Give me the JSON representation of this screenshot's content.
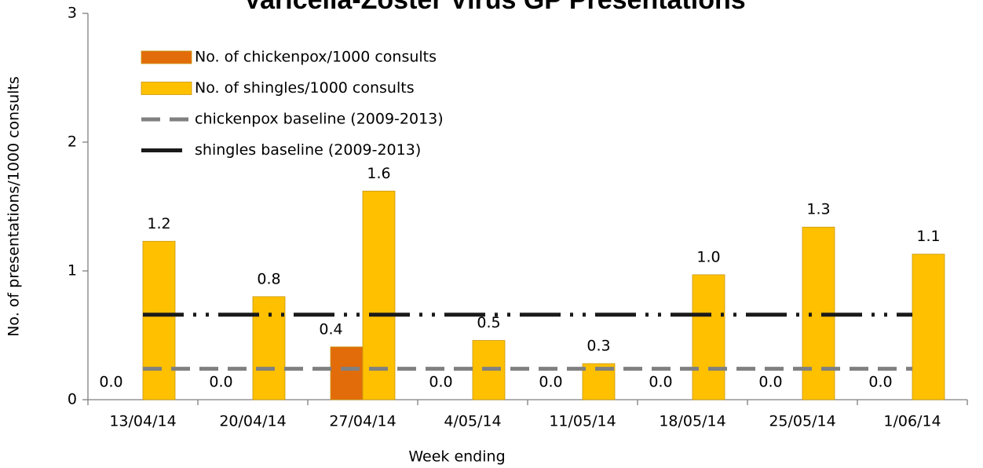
{
  "chart_data": {
    "type": "bar",
    "title": "Varicella-Zoster Virus GP Presentations",
    "x_label": "Week ending",
    "y_label": "No. of presentations/1000 consults",
    "categories": [
      "13/04/14",
      "20/04/14",
      "27/04/14",
      "4/05/14",
      "11/05/14",
      "18/05/14",
      "25/05/14",
      "1/06/14"
    ],
    "series": [
      {
        "name": "No. of chickenpox/1000 consults",
        "type": "bar",
        "color": "#E36C0A",
        "values": [
          0,
          0,
          0.41,
          0,
          0,
          0,
          0,
          0
        ],
        "value_labels": [
          "0.0",
          "0.0",
          "0.4",
          "0.0",
          "0.0",
          "0.0",
          "0.0",
          "0.0"
        ]
      },
      {
        "name": "No. of shingles/1000 consults",
        "type": "bar",
        "color": "#FFC000",
        "values": [
          1.23,
          0.8,
          1.62,
          0.46,
          0.28,
          0.97,
          1.34,
          1.13
        ],
        "value_labels": [
          "1.2",
          "0.8",
          "1.6",
          "0.5",
          "0.3",
          "1.0",
          "1.3",
          "1.1"
        ]
      },
      {
        "name": "chickenpox baseline (2009-2013)",
        "type": "line",
        "color": "#808080",
        "dash": "dashed",
        "values": [
          0.24,
          0.24,
          0.24,
          0.24,
          0.24,
          0.24,
          0.24,
          0.24
        ]
      },
      {
        "name": "shingles baseline (2009-2013)",
        "type": "line",
        "color": "#1a1a1a",
        "dash": "dash-dot-dot",
        "values": [
          0.66,
          0.66,
          0.66,
          0.66,
          0.66,
          0.66,
          0.66,
          0.66
        ]
      }
    ],
    "ylim": [
      0,
      3
    ],
    "yticks": [
      0,
      1,
      2,
      3
    ],
    "legend": "upper left"
  }
}
